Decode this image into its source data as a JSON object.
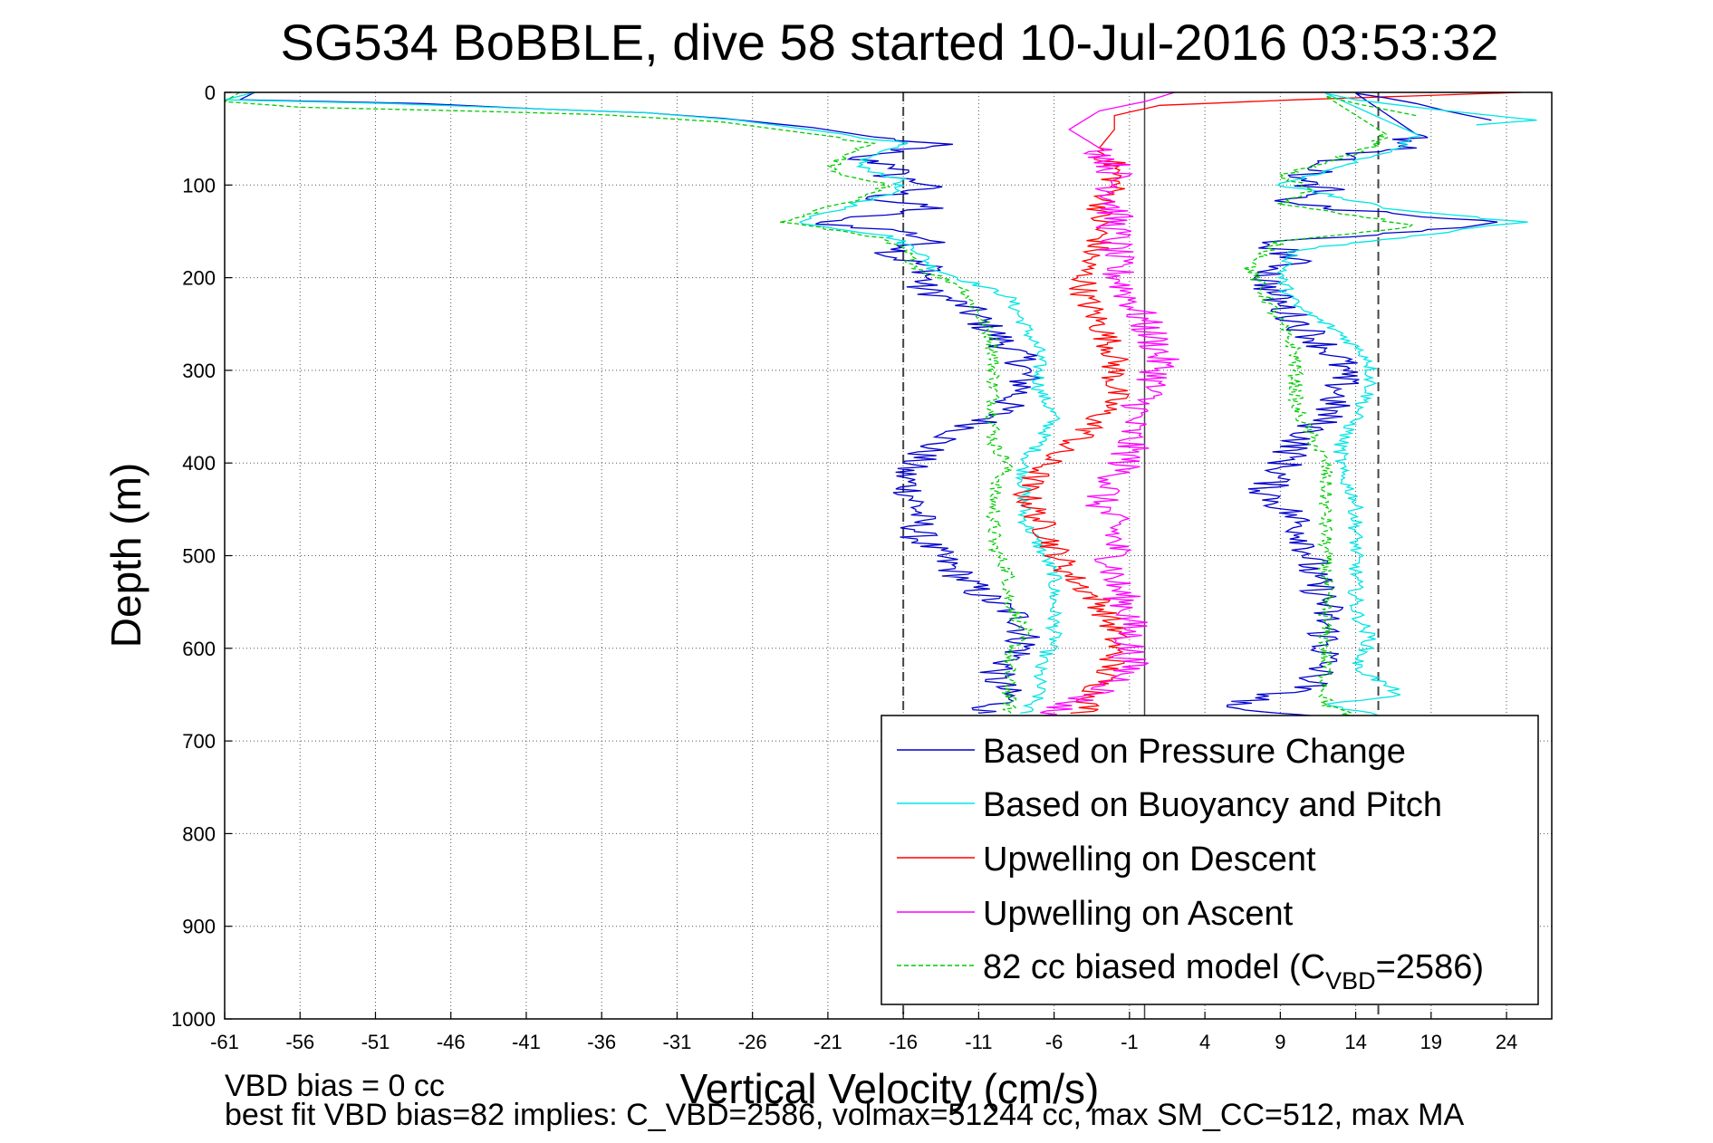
{
  "chart_data": {
    "type": "line",
    "title": "SG534 BoBBLE, dive 58 started 10-Jul-2016 03:53:32",
    "xlabel": "Vertical Velocity (cm/s)",
    "ylabel": "Depth (m)",
    "xlim": [
      -61,
      27
    ],
    "ylim": [
      0,
      1000
    ],
    "y_reversed": true,
    "grid": true,
    "xticks": [
      -61,
      -56,
      -51,
      -46,
      -41,
      -36,
      -31,
      -26,
      -21,
      -16,
      -11,
      -6,
      -1,
      4,
      9,
      14,
      19,
      24
    ],
    "yticks": [
      0,
      100,
      200,
      300,
      400,
      500,
      600,
      700,
      800,
      900,
      1000
    ],
    "reference_lines": {
      "dashed_x": [
        -16,
        15.5
      ],
      "solid_x": [
        0
      ]
    },
    "legend_placement": "bottom-right",
    "legend": [
      {
        "label": "Based on Pressure Change",
        "color": "#0000cc",
        "dash": false
      },
      {
        "label": "Based on Buoyancy and Pitch",
        "color": "#00e5e5",
        "dash": false
      },
      {
        "label": "Upwelling on Descent",
        "color": "#ff0000",
        "dash": false
      },
      {
        "label": "Upwelling on Ascent",
        "color": "#ff00ff",
        "dash": false
      },
      {
        "label_prefix": "82 cc biased model (C",
        "label_sub": "VBD",
        "label_suffix": "=2586)",
        "color": "#00cc00",
        "dash": true
      }
    ],
    "series": [
      {
        "key": "pc_descent",
        "color": "#0000cc",
        "noise": 1.3,
        "points": [
          [
            -59,
            0
          ],
          [
            -60,
            8
          ],
          [
            -48,
            12
          ],
          [
            -40,
            18
          ],
          [
            -33,
            22
          ],
          [
            -28,
            28
          ],
          [
            -22,
            38
          ],
          [
            -18,
            48
          ],
          [
            -14,
            56
          ],
          [
            -15,
            60
          ],
          [
            -20,
            70
          ],
          [
            -16,
            80
          ],
          [
            -17,
            90
          ],
          [
            -14,
            100
          ],
          [
            -18,
            115
          ],
          [
            -14,
            125
          ],
          [
            -22,
            140
          ],
          [
            -16,
            150
          ],
          [
            -14,
            160
          ],
          [
            -17,
            175
          ],
          [
            -14,
            190
          ],
          [
            -15,
            210
          ],
          [
            -12,
            230
          ],
          [
            -10,
            260
          ],
          [
            -8,
            290
          ],
          [
            -8,
            320
          ],
          [
            -10,
            350
          ],
          [
            -14,
            380
          ],
          [
            -16,
            410
          ],
          [
            -15,
            450
          ],
          [
            -15,
            480
          ],
          [
            -13,
            510
          ],
          [
            -11,
            540
          ],
          [
            -8,
            570
          ],
          [
            -8,
            600
          ],
          [
            -10,
            630
          ],
          [
            -9,
            655
          ],
          [
            -11,
            670
          ]
        ]
      },
      {
        "key": "bp_descent",
        "color": "#00e5e5",
        "noise": 0.5,
        "points": [
          [
            -59,
            0
          ],
          [
            -61,
            8
          ],
          [
            -50,
            12
          ],
          [
            -40,
            18
          ],
          [
            -33,
            22
          ],
          [
            -27,
            30
          ],
          [
            -20,
            45
          ],
          [
            -16,
            55
          ],
          [
            -18,
            65
          ],
          [
            -19,
            80
          ],
          [
            -16,
            95
          ],
          [
            -17,
            110
          ],
          [
            -21,
            130
          ],
          [
            -23,
            140
          ],
          [
            -17,
            155
          ],
          [
            -15,
            170
          ],
          [
            -14,
            190
          ],
          [
            -9,
            220
          ],
          [
            -8,
            250
          ],
          [
            -7,
            280
          ],
          [
            -7,
            300
          ],
          [
            -7,
            320
          ],
          [
            -6,
            350
          ],
          [
            -7,
            380
          ],
          [
            -8,
            400
          ],
          [
            -8,
            430
          ],
          [
            -8,
            460
          ],
          [
            -7,
            490
          ],
          [
            -6,
            520
          ],
          [
            -6,
            560
          ],
          [
            -6,
            590
          ],
          [
            -7,
            620
          ],
          [
            -7,
            650
          ],
          [
            -8,
            670
          ]
        ]
      },
      {
        "key": "model_descent",
        "color": "#00cc00",
        "noise": 0.5,
        "dash": true,
        "points": [
          [
            -60,
            0
          ],
          [
            -61,
            10
          ],
          [
            -56,
            16
          ],
          [
            -45,
            20
          ],
          [
            -36,
            24
          ],
          [
            -28,
            32
          ],
          [
            -22,
            45
          ],
          [
            -18,
            55
          ],
          [
            -20,
            70
          ],
          [
            -21,
            85
          ],
          [
            -17,
            100
          ],
          [
            -20,
            120
          ],
          [
            -24,
            140
          ],
          [
            -18,
            155
          ],
          [
            -16,
            170
          ],
          [
            -15,
            190
          ],
          [
            -12,
            210
          ],
          [
            -11,
            240
          ],
          [
            -10,
            270
          ],
          [
            -10,
            300
          ],
          [
            -10,
            330
          ],
          [
            -10,
            360
          ],
          [
            -10,
            380
          ],
          [
            -9,
            400
          ],
          [
            -10,
            430
          ],
          [
            -10,
            460
          ],
          [
            -10,
            490
          ],
          [
            -9,
            520
          ],
          [
            -9,
            550
          ],
          [
            -8,
            580
          ],
          [
            -9,
            610
          ],
          [
            -9,
            640
          ],
          [
            -9,
            670
          ]
        ]
      },
      {
        "key": "up_descent",
        "color": "#ff0000",
        "noise": 1.0,
        "points": [
          [
            25,
            0
          ],
          [
            10,
            8
          ],
          [
            1,
            14
          ],
          [
            -2,
            25
          ],
          [
            -2,
            40
          ],
          [
            -3,
            60
          ],
          [
            -2,
            80
          ],
          [
            -2,
            100
          ],
          [
            -3,
            130
          ],
          [
            -3,
            160
          ],
          [
            -4,
            190
          ],
          [
            -4,
            220
          ],
          [
            -3,
            250
          ],
          [
            -2,
            280
          ],
          [
            -2,
            300
          ],
          [
            -2,
            330
          ],
          [
            -3,
            350
          ],
          [
            -4,
            370
          ],
          [
            -6,
            390
          ],
          [
            -7,
            410
          ],
          [
            -8,
            430
          ],
          [
            -7,
            460
          ],
          [
            -6,
            490
          ],
          [
            -5,
            520
          ],
          [
            -3,
            550
          ],
          [
            -2,
            580
          ],
          [
            -2,
            610
          ],
          [
            -3,
            640
          ],
          [
            -4,
            670
          ]
        ]
      },
      {
        "key": "up_ascent",
        "color": "#ff00ff",
        "noise": 1.3,
        "points": [
          [
            2,
            0
          ],
          [
            0,
            10
          ],
          [
            -3,
            20
          ],
          [
            -4,
            30
          ],
          [
            -5,
            40
          ],
          [
            -3,
            60
          ],
          [
            -2,
            80
          ],
          [
            -2,
            100
          ],
          [
            -2,
            130
          ],
          [
            -2,
            160
          ],
          [
            -2,
            190
          ],
          [
            -1,
            220
          ],
          [
            0,
            250
          ],
          [
            1,
            280
          ],
          [
            1,
            300
          ],
          [
            0,
            330
          ],
          [
            -1,
            360
          ],
          [
            -1,
            390
          ],
          [
            -2,
            420
          ],
          [
            -3,
            440
          ],
          [
            -2,
            470
          ],
          [
            -2,
            500
          ],
          [
            -2,
            530
          ],
          [
            -1,
            560
          ],
          [
            -1,
            590
          ],
          [
            -1,
            620
          ],
          [
            -2,
            640
          ],
          [
            -5,
            660
          ],
          [
            -7,
            675
          ]
        ]
      },
      {
        "key": "pc_ascent",
        "color": "#0000cc",
        "noise": 1.3,
        "points": [
          [
            23,
            30
          ],
          [
            20,
            20
          ],
          [
            18,
            12
          ],
          [
            16,
            6
          ],
          [
            14,
            1
          ],
          [
            18,
            45
          ],
          [
            17,
            60
          ],
          [
            13,
            70
          ],
          [
            12,
            80
          ],
          [
            10,
            95
          ],
          [
            12,
            105
          ],
          [
            9,
            115
          ],
          [
            12,
            125
          ],
          [
            23,
            140
          ],
          [
            19,
            150
          ],
          [
            8,
            160
          ],
          [
            10,
            180
          ],
          [
            8,
            200
          ],
          [
            9,
            230
          ],
          [
            11,
            260
          ],
          [
            13,
            290
          ],
          [
            13,
            320
          ],
          [
            12,
            350
          ],
          [
            10,
            380
          ],
          [
            9,
            410
          ],
          [
            8,
            430
          ],
          [
            10,
            460
          ],
          [
            11,
            490
          ],
          [
            11,
            520
          ],
          [
            12,
            550
          ],
          [
            12,
            580
          ],
          [
            12,
            610
          ],
          [
            11,
            640
          ],
          [
            5,
            665
          ],
          [
            8,
            670
          ],
          [
            15,
            675
          ]
        ]
      },
      {
        "key": "bp_ascent",
        "color": "#00e5e5",
        "noise": 0.5,
        "points": [
          [
            22,
            35
          ],
          [
            26,
            30
          ],
          [
            19,
            18
          ],
          [
            14,
            8
          ],
          [
            12,
            1
          ],
          [
            18,
            45
          ],
          [
            17,
            60
          ],
          [
            15,
            70
          ],
          [
            12,
            85
          ],
          [
            9,
            100
          ],
          [
            12,
            110
          ],
          [
            16,
            125
          ],
          [
            25,
            140
          ],
          [
            18,
            155
          ],
          [
            10,
            170
          ],
          [
            9,
            200
          ],
          [
            10,
            230
          ],
          [
            13,
            260
          ],
          [
            15,
            290
          ],
          [
            15,
            320
          ],
          [
            14,
            350
          ],
          [
            13,
            380
          ],
          [
            13,
            410
          ],
          [
            14,
            440
          ],
          [
            14,
            470
          ],
          [
            14,
            500
          ],
          [
            14,
            530
          ],
          [
            14,
            560
          ],
          [
            15,
            590
          ],
          [
            14,
            620
          ],
          [
            17,
            650
          ],
          [
            12,
            660
          ],
          [
            16,
            675
          ]
        ]
      },
      {
        "key": "model_ascent",
        "color": "#00cc00",
        "noise": 0.5,
        "dash": true,
        "points": [
          [
            18,
            25
          ],
          [
            14,
            12
          ],
          [
            12,
            4
          ],
          [
            16,
            45
          ],
          [
            15,
            60
          ],
          [
            12,
            75
          ],
          [
            9,
            90
          ],
          [
            11,
            105
          ],
          [
            9,
            120
          ],
          [
            15,
            135
          ],
          [
            18,
            145
          ],
          [
            9,
            160
          ],
          [
            7,
            190
          ],
          [
            8,
            220
          ],
          [
            9,
            250
          ],
          [
            10,
            280
          ],
          [
            10,
            310
          ],
          [
            10,
            340
          ],
          [
            11,
            370
          ],
          [
            12,
            400
          ],
          [
            12,
            430
          ],
          [
            12,
            460
          ],
          [
            12,
            490
          ],
          [
            12,
            520
          ],
          [
            12,
            550
          ],
          [
            12,
            580
          ],
          [
            12,
            610
          ],
          [
            12,
            640
          ],
          [
            12,
            660
          ],
          [
            14,
            675
          ]
        ]
      }
    ],
    "annotations": {
      "bias_note": "VBD bias = 0 cc",
      "fit_note": "best fit VBD bias=82 implies: C_VBD=2586, volmax=51244 cc, max SM_CC=512, max MA"
    }
  }
}
